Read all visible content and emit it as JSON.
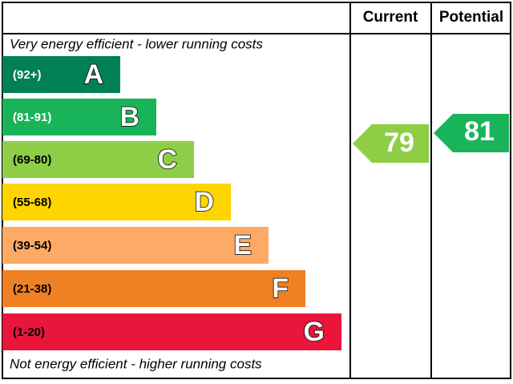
{
  "header": {
    "current": "Current",
    "potential": "Potential"
  },
  "top_note": "Very energy efficient - lower running costs",
  "bottom_note": "Not energy efficient - higher running costs",
  "bands": [
    {
      "range": "(92+)",
      "letter": "A",
      "color": "#008054"
    },
    {
      "range": "(81-91)",
      "letter": "B",
      "color": "#19b459"
    },
    {
      "range": "(69-80)",
      "letter": "C",
      "color": "#8dce46"
    },
    {
      "range": "(55-68)",
      "letter": "D",
      "color": "#ffd500"
    },
    {
      "range": "(39-54)",
      "letter": "E",
      "color": "#fcaa65"
    },
    {
      "range": "(21-38)",
      "letter": "F",
      "color": "#ef8023"
    },
    {
      "range": "(1-20)",
      "letter": "G",
      "color": "#e9153b"
    }
  ],
  "current": {
    "value": 79,
    "color": "#8dce46"
  },
  "potential": {
    "value": 81,
    "color": "#19b459"
  }
}
